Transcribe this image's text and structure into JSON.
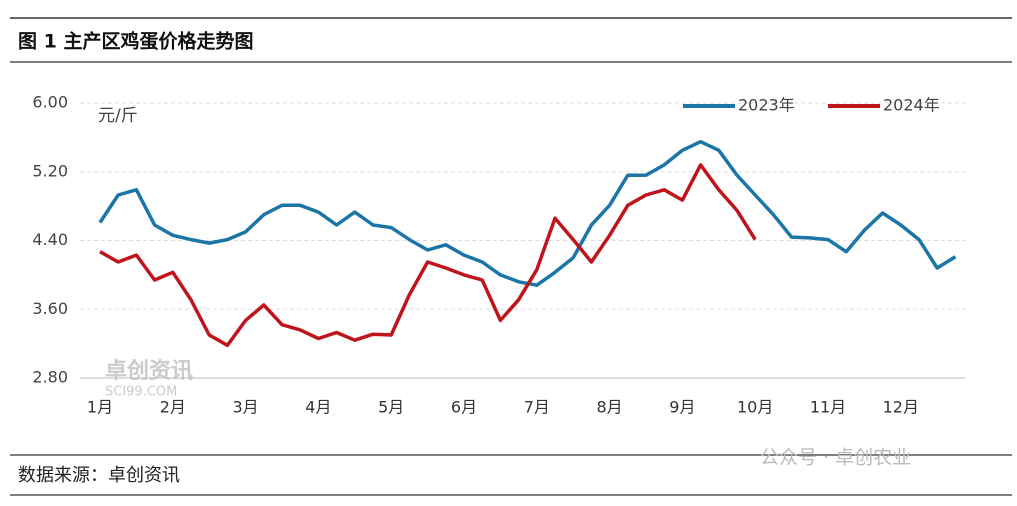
{
  "header": {
    "title": "图 1  主产区鸡蛋价格走势图"
  },
  "chart_data": {
    "type": "line",
    "y_label": "元/斤",
    "categories": [
      "1月",
      null,
      null,
      null,
      "2月",
      null,
      null,
      null,
      "3月",
      null,
      null,
      null,
      "4月",
      null,
      null,
      null,
      "5月",
      null,
      null,
      null,
      "6月",
      null,
      null,
      null,
      "7月",
      null,
      null,
      null,
      "8月",
      null,
      null,
      null,
      "9月",
      null,
      null,
      null,
      "10月",
      null,
      null,
      null,
      "11月",
      null,
      null,
      null,
      "12月",
      null,
      null,
      null
    ],
    "series": [
      {
        "name": "2023年",
        "color": "#1b75a6",
        "values": [
          4.61,
          4.93,
          4.99,
          4.58,
          4.46,
          4.41,
          4.37,
          4.41,
          4.5,
          4.7,
          4.81,
          4.81,
          4.73,
          4.58,
          4.73,
          4.58,
          4.55,
          4.41,
          4.29,
          4.35,
          4.23,
          4.15,
          4.0,
          3.92,
          3.88,
          4.03,
          4.2,
          4.58,
          4.81,
          5.16,
          5.16,
          5.28,
          5.45,
          5.55,
          5.45,
          5.16,
          4.93,
          4.7,
          4.44,
          4.43,
          4.41,
          4.27,
          4.52,
          4.72,
          4.58,
          4.41,
          4.08,
          4.21
        ]
      },
      {
        "name": "2024年",
        "color": "#c0141c",
        "values": [
          4.27,
          4.15,
          4.23,
          3.94,
          4.03,
          3.71,
          3.3,
          3.18,
          3.47,
          3.65,
          3.42,
          3.36,
          3.26,
          3.33,
          3.24,
          3.31,
          3.3,
          3.77,
          4.15,
          4.08,
          4.0,
          3.94,
          3.47,
          3.71,
          4.06,
          4.66,
          4.41,
          4.15,
          4.46,
          4.81,
          4.93,
          4.99,
          4.87,
          5.28,
          4.99,
          4.75,
          4.41,
          null,
          null,
          null,
          null,
          null,
          null,
          null,
          null,
          null,
          null,
          null
        ]
      }
    ],
    "ylim": [
      2.8,
      6.0
    ],
    "yticks": [
      {
        "value": 2.8,
        "label": "2.80"
      },
      {
        "value": 3.6,
        "label": "3.60"
      },
      {
        "value": 4.4,
        "label": "4.40"
      },
      {
        "value": 5.2,
        "label": "5.20"
      },
      {
        "value": 6.0,
        "label": "6.00"
      }
    ],
    "grid": true,
    "legend": "top-right"
  },
  "watermark": {
    "name": "卓创资讯",
    "site": "SCI99.COM"
  },
  "footer": {
    "source": "数据来源：卓创资讯",
    "account": "公众号 · 卓创农业"
  }
}
